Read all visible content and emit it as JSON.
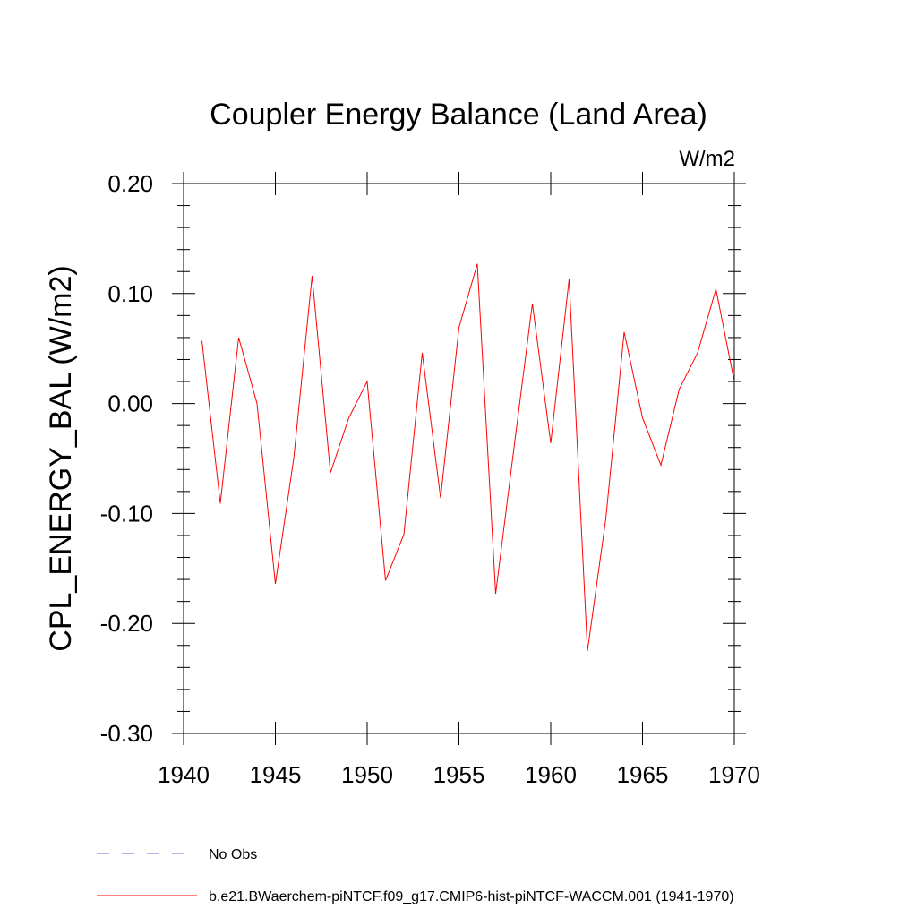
{
  "chart_data": {
    "type": "line",
    "title": "Coupler Energy Balance (Land Area)",
    "units_label": "W/m2",
    "ylabel": "CPL_ENERGY_BAL  (W/m2)",
    "xlabel": "",
    "xlim": [
      1940,
      1970
    ],
    "ylim": [
      -0.3,
      0.2
    ],
    "x_ticks": [
      1940,
      1945,
      1950,
      1955,
      1960,
      1965,
      1970
    ],
    "x_tick_labels": [
      "1940",
      "1945",
      "1950",
      "1955",
      "1960",
      "1965",
      "1970"
    ],
    "y_ticks": [
      -0.3,
      -0.2,
      -0.1,
      0.0,
      0.1,
      0.2
    ],
    "y_tick_labels": [
      "-0.30",
      "-0.20",
      "-0.10",
      "0.00",
      "0.10",
      "0.20"
    ],
    "grid": false,
    "legend_position": "bottom-left",
    "series": [
      {
        "name": "b.e21.BWaerchem-piNTCF.f09_g17.CMIP6-hist-piNTCF-WACCM.001 (1941-1970)",
        "color": "#ff0000",
        "style": "solid",
        "x": [
          1941,
          1942,
          1943,
          1944,
          1945,
          1946,
          1947,
          1948,
          1949,
          1950,
          1951,
          1952,
          1953,
          1954,
          1955,
          1956,
          1957,
          1958,
          1959,
          1960,
          1961,
          1962,
          1963,
          1964,
          1965,
          1966,
          1967,
          1968,
          1969,
          1970
        ],
        "y": [
          0.057,
          -0.091,
          0.06,
          0.0,
          -0.164,
          -0.05,
          0.116,
          -0.063,
          -0.013,
          0.02,
          -0.161,
          -0.119,
          0.046,
          -0.086,
          0.069,
          0.127,
          -0.173,
          -0.04,
          0.091,
          -0.036,
          0.113,
          -0.225,
          -0.105,
          0.065,
          -0.013,
          -0.056,
          0.013,
          0.046,
          0.104,
          0.02
        ]
      },
      {
        "name": "No Obs",
        "color": "#6a6ad8",
        "style": "dashed",
        "x": [],
        "y": []
      }
    ]
  }
}
